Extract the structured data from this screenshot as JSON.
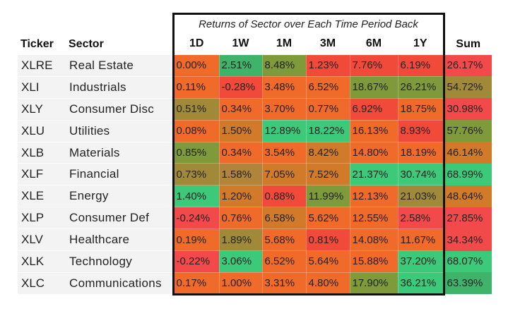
{
  "title": "Returns of Sector over Each Time Period Back",
  "headers": {
    "ticker": "Ticker",
    "sector": "Sector",
    "periods": [
      "1D",
      "1W",
      "1M",
      "3M",
      "6M",
      "1Y"
    ],
    "sum": "Sum"
  },
  "rows": [
    {
      "ticker": "XLRE",
      "sector": "Real Estate",
      "values": [
        "0.00%",
        "2.51%",
        "8.48%",
        "1.23%",
        "7.76%",
        "6.19%"
      ],
      "colors": [
        "#f06a2a",
        "#3fb36a",
        "#7f9a3a",
        "#f24a3a",
        "#f24a3a",
        "#f24a3a"
      ],
      "sum": "26.17%",
      "sum_color": "#f24a4a"
    },
    {
      "ticker": "XLI",
      "sector": "Industrials",
      "values": [
        "0.11%",
        "-0.28%",
        "3.48%",
        "6.52%",
        "18.67%",
        "26.21%"
      ],
      "colors": [
        "#f06a2a",
        "#f24a3a",
        "#f06a2a",
        "#f06a2a",
        "#7f9a3a",
        "#7f9a3a"
      ],
      "sum": "54.72%",
      "sum_color": "#a08a3a"
    },
    {
      "ticker": "XLY",
      "sector": "Consumer Disc",
      "values": [
        "0.51%",
        "0.34%",
        "3.70%",
        "0.77%",
        "6.92%",
        "18.75%"
      ],
      "colors": [
        "#a08a3a",
        "#f06a2a",
        "#f06a2a",
        "#f06a2a",
        "#f24a3a",
        "#f06a2a"
      ],
      "sum": "30.98%",
      "sum_color": "#f24a4a"
    },
    {
      "ticker": "XLU",
      "sector": "Utilities",
      "values": [
        "0.08%",
        "1.50%",
        "12.89%",
        "18.22%",
        "16.13%",
        "8.93%"
      ],
      "colors": [
        "#f06a2a",
        "#d07a2a",
        "#3dc97a",
        "#3dc97a",
        "#f06a2a",
        "#f24a3a"
      ],
      "sum": "57.76%",
      "sum_color": "#7f9a3a"
    },
    {
      "ticker": "XLB",
      "sector": "Materials",
      "values": [
        "0.85%",
        "0.34%",
        "3.54%",
        "8.42%",
        "14.80%",
        "18.19%"
      ],
      "colors": [
        "#7f9a3a",
        "#f06a2a",
        "#f06a2a",
        "#d07a2a",
        "#f06a2a",
        "#f06a2a"
      ],
      "sum": "46.14%",
      "sum_color": "#d07a2a"
    },
    {
      "ticker": "XLF",
      "sector": "Financial",
      "values": [
        "0.73%",
        "1.58%",
        "7.05%",
        "7.52%",
        "21.37%",
        "30.74%"
      ],
      "colors": [
        "#a08a3a",
        "#b0843a",
        "#d07a2a",
        "#d07a2a",
        "#3dc97a",
        "#3dc97a"
      ],
      "sum": "68.99%",
      "sum_color": "#3dc97a"
    },
    {
      "ticker": "XLE",
      "sector": "Energy",
      "values": [
        "1.40%",
        "1.20%",
        "0.88%",
        "11.99%",
        "12.13%",
        "21.03%"
      ],
      "colors": [
        "#3dc97a",
        "#d07a2a",
        "#f24a3a",
        "#7f9a3a",
        "#f06a2a",
        "#a08a3a"
      ],
      "sum": "48.64%",
      "sum_color": "#d07a2a"
    },
    {
      "ticker": "XLP",
      "sector": "Consumer Def",
      "values": [
        "-0.24%",
        "0.76%",
        "6.58%",
        "5.62%",
        "12.55%",
        "2.58%"
      ],
      "colors": [
        "#f24a4a",
        "#f06a2a",
        "#d07a2a",
        "#f06a2a",
        "#f06a2a",
        "#f24a4a"
      ],
      "sum": "27.85%",
      "sum_color": "#f24a4a"
    },
    {
      "ticker": "XLV",
      "sector": "Healthcare",
      "values": [
        "0.19%",
        "1.89%",
        "5.68%",
        "0.81%",
        "14.08%",
        "11.67%"
      ],
      "colors": [
        "#f06a2a",
        "#a08a3a",
        "#f06a2a",
        "#f24a3a",
        "#f06a2a",
        "#f06a2a"
      ],
      "sum": "34.34%",
      "sum_color": "#f24a4a"
    },
    {
      "ticker": "XLK",
      "sector": "Technology",
      "values": [
        "-0.22%",
        "3.06%",
        "6.52%",
        "5.64%",
        "15.88%",
        "37.20%"
      ],
      "colors": [
        "#f24a4a",
        "#3dc97a",
        "#f06a2a",
        "#f06a2a",
        "#f06a2a",
        "#3dc97a"
      ],
      "sum": "68.07%",
      "sum_color": "#3dc97a"
    },
    {
      "ticker": "XLC",
      "sector": "Communications",
      "values": [
        "0.17%",
        "1.00%",
        "3.31%",
        "4.80%",
        "17.90%",
        "36.21%"
      ],
      "colors": [
        "#f06a2a",
        "#f06a2a",
        "#f06a2a",
        "#f06a2a",
        "#7f9a3a",
        "#3dc97a"
      ],
      "sum": "63.39%",
      "sum_color": "#3fb36a"
    }
  ]
}
